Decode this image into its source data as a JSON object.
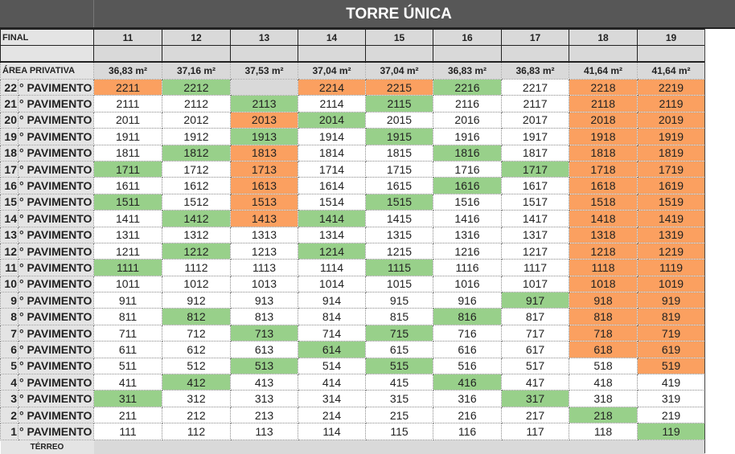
{
  "title": "TORRE ÚNICA",
  "final_label": "FINAL",
  "area_label": "ÁREA PRIVATIVA",
  "floor_suffix": "° PAVIMENTO",
  "terreo_label": "TÉRREO",
  "colors": {
    "orange": "#fba060",
    "green": "#98d08a",
    "white": "#ffffff",
    "gray": "#d9d9d9",
    "header": "#575757"
  },
  "finals": [
    "11",
    "12",
    "13",
    "14",
    "15",
    "16",
    "17",
    "18",
    "19"
  ],
  "areas": [
    "36,83 m²",
    "37,16 m²",
    "37,53 m²",
    "37,04 m²",
    "37,04 m²",
    "36,83 m²",
    "36,83 m²",
    "41,64 m²",
    "41,64 m²"
  ],
  "floors": [
    {
      "floor": "22",
      "units": [
        "2211",
        "2212",
        "",
        "2214",
        "2215",
        "2216",
        "2217",
        "2218",
        "2219"
      ],
      "status": [
        "orange",
        "green",
        "gray",
        "orange",
        "orange",
        "green",
        "white",
        "orange",
        "orange"
      ]
    },
    {
      "floor": "21",
      "units": [
        "2111",
        "2112",
        "2113",
        "2114",
        "2115",
        "2116",
        "2117",
        "2118",
        "2119"
      ],
      "status": [
        "white",
        "white",
        "green",
        "white",
        "green",
        "white",
        "white",
        "orange",
        "orange"
      ]
    },
    {
      "floor": "20",
      "units": [
        "2011",
        "2012",
        "2013",
        "2014",
        "2015",
        "2016",
        "2017",
        "2018",
        "2019"
      ],
      "status": [
        "white",
        "white",
        "orange",
        "green",
        "white",
        "white",
        "white",
        "orange",
        "orange"
      ]
    },
    {
      "floor": "19",
      "units": [
        "1911",
        "1912",
        "1913",
        "1914",
        "1915",
        "1916",
        "1917",
        "1918",
        "1919"
      ],
      "status": [
        "white",
        "white",
        "green",
        "white",
        "green",
        "white",
        "white",
        "orange",
        "orange"
      ]
    },
    {
      "floor": "18",
      "units": [
        "1811",
        "1812",
        "1813",
        "1814",
        "1815",
        "1816",
        "1817",
        "1818",
        "1819"
      ],
      "status": [
        "white",
        "green",
        "orange",
        "white",
        "white",
        "green",
        "white",
        "orange",
        "orange"
      ]
    },
    {
      "floor": "17",
      "units": [
        "1711",
        "1712",
        "1713",
        "1714",
        "1715",
        "1716",
        "1717",
        "1718",
        "1719"
      ],
      "status": [
        "green",
        "white",
        "orange",
        "white",
        "white",
        "white",
        "green",
        "orange",
        "orange"
      ]
    },
    {
      "floor": "16",
      "units": [
        "1611",
        "1612",
        "1613",
        "1614",
        "1615",
        "1616",
        "1617",
        "1618",
        "1619"
      ],
      "status": [
        "white",
        "white",
        "orange",
        "white",
        "white",
        "green",
        "white",
        "orange",
        "orange"
      ]
    },
    {
      "floor": "15",
      "units": [
        "1511",
        "1512",
        "1513",
        "1514",
        "1515",
        "1516",
        "1517",
        "1518",
        "1519"
      ],
      "status": [
        "green",
        "white",
        "orange",
        "white",
        "green",
        "white",
        "white",
        "orange",
        "orange"
      ]
    },
    {
      "floor": "14",
      "units": [
        "1411",
        "1412",
        "1413",
        "1414",
        "1415",
        "1416",
        "1417",
        "1418",
        "1419"
      ],
      "status": [
        "white",
        "green",
        "orange",
        "green",
        "white",
        "white",
        "white",
        "orange",
        "orange"
      ]
    },
    {
      "floor": "13",
      "units": [
        "1311",
        "1312",
        "1313",
        "1314",
        "1315",
        "1316",
        "1317",
        "1318",
        "1319"
      ],
      "status": [
        "white",
        "white",
        "white",
        "white",
        "white",
        "white",
        "white",
        "orange",
        "orange"
      ]
    },
    {
      "floor": "12",
      "units": [
        "1211",
        "1212",
        "1213",
        "1214",
        "1215",
        "1216",
        "1217",
        "1218",
        "1219"
      ],
      "status": [
        "white",
        "green",
        "white",
        "green",
        "white",
        "white",
        "white",
        "orange",
        "orange"
      ]
    },
    {
      "floor": "11",
      "units": [
        "1111",
        "1112",
        "1113",
        "1114",
        "1115",
        "1116",
        "1117",
        "1118",
        "1119"
      ],
      "status": [
        "green",
        "white",
        "white",
        "white",
        "green",
        "white",
        "white",
        "orange",
        "orange"
      ]
    },
    {
      "floor": "10",
      "units": [
        "1011",
        "1012",
        "1013",
        "1014",
        "1015",
        "1016",
        "1017",
        "1018",
        "1019"
      ],
      "status": [
        "white",
        "white",
        "white",
        "white",
        "white",
        "white",
        "white",
        "orange",
        "orange"
      ]
    },
    {
      "floor": "9",
      "units": [
        "911",
        "912",
        "913",
        "914",
        "915",
        "916",
        "917",
        "918",
        "919"
      ],
      "status": [
        "white",
        "white",
        "white",
        "white",
        "white",
        "white",
        "green",
        "orange",
        "orange"
      ]
    },
    {
      "floor": "8",
      "units": [
        "811",
        "812",
        "813",
        "814",
        "815",
        "816",
        "817",
        "818",
        "819"
      ],
      "status": [
        "white",
        "green",
        "white",
        "white",
        "white",
        "green",
        "white",
        "orange",
        "orange"
      ]
    },
    {
      "floor": "7",
      "units": [
        "711",
        "712",
        "713",
        "714",
        "715",
        "716",
        "717",
        "718",
        "719"
      ],
      "status": [
        "white",
        "white",
        "green",
        "white",
        "green",
        "white",
        "white",
        "orange",
        "orange"
      ]
    },
    {
      "floor": "6",
      "units": [
        "611",
        "612",
        "613",
        "614",
        "615",
        "616",
        "617",
        "618",
        "619"
      ],
      "status": [
        "white",
        "white",
        "white",
        "green",
        "white",
        "white",
        "white",
        "orange",
        "orange"
      ]
    },
    {
      "floor": "5",
      "units": [
        "511",
        "512",
        "513",
        "514",
        "515",
        "516",
        "517",
        "518",
        "519"
      ],
      "status": [
        "white",
        "white",
        "green",
        "white",
        "green",
        "white",
        "white",
        "white",
        "orange"
      ]
    },
    {
      "floor": "4",
      "units": [
        "411",
        "412",
        "413",
        "414",
        "415",
        "416",
        "417",
        "418",
        "419"
      ],
      "status": [
        "white",
        "green",
        "white",
        "white",
        "white",
        "green",
        "white",
        "white",
        "white"
      ]
    },
    {
      "floor": "3",
      "units": [
        "311",
        "312",
        "313",
        "314",
        "315",
        "316",
        "317",
        "318",
        "319"
      ],
      "status": [
        "green",
        "white",
        "white",
        "white",
        "white",
        "white",
        "green",
        "white",
        "white"
      ]
    },
    {
      "floor": "2",
      "units": [
        "211",
        "212",
        "213",
        "214",
        "215",
        "216",
        "217",
        "218",
        "219"
      ],
      "status": [
        "white",
        "white",
        "white",
        "white",
        "white",
        "white",
        "white",
        "green",
        "white"
      ]
    },
    {
      "floor": "1",
      "units": [
        "111",
        "112",
        "113",
        "114",
        "115",
        "116",
        "117",
        "118",
        "119"
      ],
      "status": [
        "white",
        "white",
        "white",
        "white",
        "white",
        "white",
        "white",
        "white",
        "green"
      ]
    }
  ]
}
